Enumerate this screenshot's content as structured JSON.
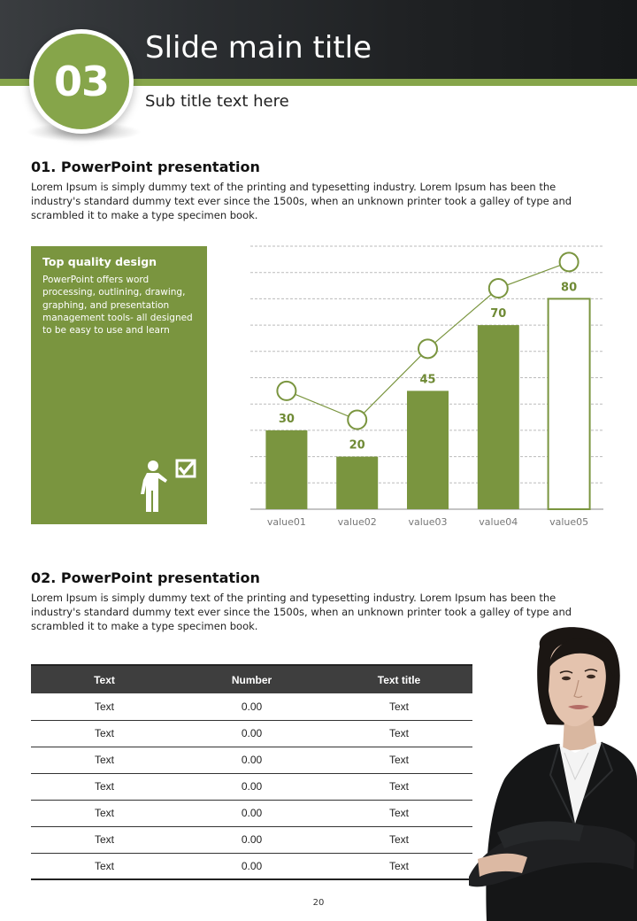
{
  "header": {
    "number": "03",
    "title": "Slide main title",
    "subtitle": "Sub title text here"
  },
  "section1": {
    "heading": "01. PowerPoint presentation",
    "body": "Lorem Ipsum is simply dummy text of the printing and typesetting industry. Lorem Ipsum has been the industry's standard dummy text ever since the 1500s, when an unknown printer took a galley of type and scrambled it to make a type specimen book."
  },
  "green_box": {
    "title": "Top quality design",
    "text": "PowerPoint offers word processing, outlining, drawing, graphing, and presentation management tools- all designed to be easy to use and learn",
    "icon": "presenter-checkmark-icon"
  },
  "chart_data": {
    "type": "bar",
    "categories": [
      "value01",
      "value02",
      "value03",
      "value04",
      "value05"
    ],
    "values": [
      30,
      20,
      45,
      70,
      80
    ],
    "line_values": [
      45,
      34,
      61,
      84,
      94
    ],
    "ylim": [
      0,
      100
    ],
    "grid": true,
    "legend": "none",
    "title": "",
    "xlabel": "",
    "ylabel": "",
    "colors": {
      "bar": "#7a953f",
      "outline_bar": "#7a953f",
      "line": "#7a953f",
      "label": "#6f8a35",
      "axis_text": "#777777",
      "grid": "#bbbbbb"
    }
  },
  "section2": {
    "heading": "02. PowerPoint presentation",
    "body": "Lorem Ipsum is simply dummy text of the printing and typesetting industry. Lorem Ipsum has been the industry's standard dummy text ever since the 1500s, when an unknown printer took a galley of type and scrambled it to make a type specimen book."
  },
  "table": {
    "headers": [
      "Text",
      "Number",
      "Text title"
    ],
    "rows": [
      [
        "Text",
        "0.00",
        "Text"
      ],
      [
        "Text",
        "0.00",
        "Text"
      ],
      [
        "Text",
        "0.00",
        "Text"
      ],
      [
        "Text",
        "0.00",
        "Text"
      ],
      [
        "Text",
        "0.00",
        "Text"
      ],
      [
        "Text",
        "0.00",
        "Text"
      ],
      [
        "Text",
        "0.00",
        "Text"
      ]
    ]
  },
  "footer": {
    "page_number": "20"
  },
  "colors": {
    "accent": "#86a54a",
    "dark": "#1f2123"
  }
}
